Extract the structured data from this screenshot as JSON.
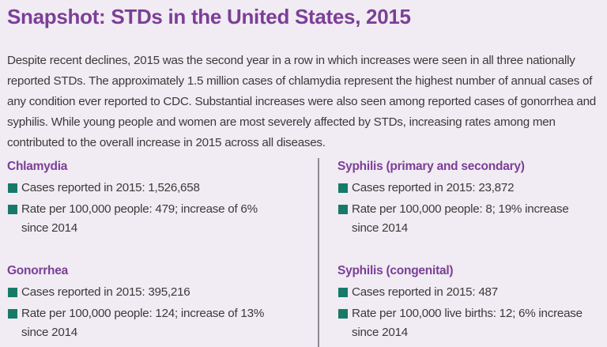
{
  "title": "Snapshot: STDs in the United States, 2015",
  "intro": "Despite recent declines, 2015 was the second year in a row in which increases were seen in all three nationally reported STDs. The approximately 1.5 million cases of chlamydia represent the highest number of annual cases of any condition ever reported to CDC. Substantial increases were also seen among reported cases of gonorrhea and syphilis. While young people and women are most severely affected by STDs, increasing rates among men contributed to the overall increase in 2015 across all diseases.",
  "colors": {
    "heading": "#7b3f96",
    "bullet": "#177a68",
    "background": "#f1ebf3"
  },
  "sections": [
    {
      "heading": "Chlamydia",
      "items": [
        "Cases reported in 2015: 1,526,658",
        "Rate per 100,000 people: 479; increase of 6% since 2014"
      ]
    },
    {
      "heading": "Gonorrhea",
      "items": [
        "Cases reported in 2015: 395,216",
        "Rate per 100,000 people: 124; increase of 13% since 2014"
      ]
    },
    {
      "heading": "Syphilis (primary and secondary)",
      "items": [
        "Cases reported in 2015: 23,872",
        "Rate per 100,000 people: 8; 19% increase since 2014"
      ]
    },
    {
      "heading": "Syphilis (congenital)",
      "items": [
        "Cases reported in 2015: 487",
        "Rate per 100,000 live births: 12; 6% increase since 2014"
      ]
    }
  ]
}
